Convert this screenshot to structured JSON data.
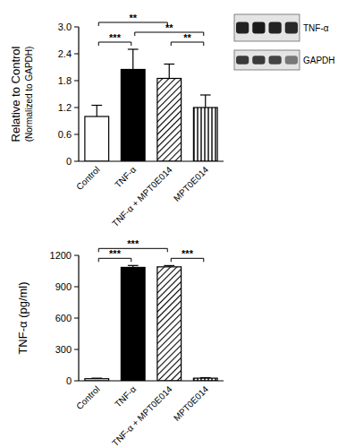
{
  "chart_data": [
    {
      "type": "bar",
      "y_label": "Relative to Control",
      "y_sublabel": "(Normalized to GAPDH)",
      "categories": [
        "Control",
        "TNF-α",
        "TNF-α + MPT0E014",
        "MPT0E014"
      ],
      "values": [
        1.0,
        2.05,
        1.85,
        1.2
      ],
      "errors": [
        0.25,
        0.45,
        0.32,
        0.28
      ],
      "colors": [
        "#ffffff",
        "#000000",
        "#ffffff",
        "#ffffff"
      ],
      "ylim": [
        0,
        3
      ],
      "yticks": [
        0,
        0.6,
        1.2,
        1.8,
        2.4,
        {
          "value": 3,
          "label": "3.0"
        }
      ],
      "grid": false,
      "annotations": [
        {
          "from": 0,
          "to": 1,
          "text": "***"
        },
        {
          "from": 2,
          "to": 3,
          "text": "**"
        },
        {
          "from": 1,
          "to": 3,
          "text": "**"
        },
        {
          "from": 0,
          "to": 2,
          "text": "**"
        }
      ]
    },
    {
      "type": "bar",
      "y_label": "TNF-α (pg/ml)",
      "categories": [
        "Control",
        "TNF-α",
        "TNF-α + MPT0E014",
        "MPT0E014"
      ],
      "values": [
        20,
        1085,
        1090,
        25
      ],
      "errors": [
        5,
        18,
        12,
        5
      ],
      "colors": [
        "#ffffff",
        "#000000",
        "#ffffff",
        "#ffffff"
      ],
      "ylim": [
        0,
        1200
      ],
      "yticks": [
        0,
        300,
        600,
        900,
        1200
      ],
      "grid": false,
      "annotations": [
        {
          "from": 0,
          "to": 1,
          "text": "***"
        },
        {
          "from": 2,
          "to": 3,
          "text": "***"
        },
        {
          "from": 0,
          "to": 2,
          "text": "***"
        }
      ]
    }
  ],
  "blot": {
    "rows": [
      "TNF-α",
      "GAPDH"
    ]
  }
}
